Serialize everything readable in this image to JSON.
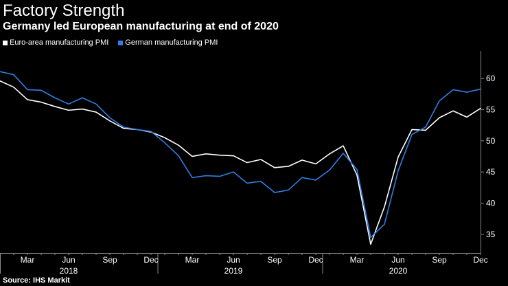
{
  "colors": {
    "background": "#000000",
    "euro": "#ffffff",
    "german": "#2f7fe6",
    "axis": "#888888"
  },
  "chart_data": {
    "type": "line",
    "title": "Factory Strength",
    "subtitle": "Germany led European manufacturing at end of 2020",
    "source": "Source: IHS Markit",
    "xlabel": "",
    "ylabel": "",
    "ylim": [
      32,
      62
    ],
    "yticks": [
      35,
      40,
      45,
      50,
      55,
      60
    ],
    "grid": false,
    "legend": "top-left",
    "x": [
      "2018-01",
      "2018-02",
      "2018-03",
      "2018-04",
      "2018-05",
      "2018-06",
      "2018-07",
      "2018-08",
      "2018-09",
      "2018-10",
      "2018-11",
      "2018-12",
      "2019-01",
      "2019-02",
      "2019-03",
      "2019-04",
      "2019-05",
      "2019-06",
      "2019-07",
      "2019-08",
      "2019-09",
      "2019-10",
      "2019-11",
      "2019-12",
      "2020-01",
      "2020-02",
      "2020-03",
      "2020-04",
      "2020-05",
      "2020-06",
      "2020-07",
      "2020-08",
      "2020-09",
      "2020-10",
      "2020-11",
      "2020-12"
    ],
    "xticks": [
      {
        "label": "Mar",
        "index": 2
      },
      {
        "label": "Jun",
        "index": 5
      },
      {
        "label": "Sep",
        "index": 8
      },
      {
        "label": "Dec",
        "index": 11
      },
      {
        "label": "Mar",
        "index": 14
      },
      {
        "label": "Jun",
        "index": 17
      },
      {
        "label": "Sep",
        "index": 20
      },
      {
        "label": "Dec",
        "index": 23
      },
      {
        "label": "Mar",
        "index": 26
      },
      {
        "label": "Jun",
        "index": 29
      },
      {
        "label": "Sep",
        "index": 32
      },
      {
        "label": "Dec",
        "index": 35
      }
    ],
    "years": [
      {
        "label": "2018",
        "index": 5
      },
      {
        "label": "2019",
        "index": 17
      },
      {
        "label": "2020",
        "index": 29
      }
    ],
    "year_dividers": [
      0,
      12,
      24
    ],
    "series": [
      {
        "name": "Euro-area manufacturing PMI",
        "color": "#ffffff",
        "values": [
          59.6,
          58.6,
          56.6,
          56.2,
          55.5,
          54.9,
          55.1,
          54.6,
          53.2,
          52.0,
          51.8,
          51.4,
          50.5,
          49.3,
          47.5,
          47.9,
          47.7,
          47.6,
          46.5,
          47.0,
          45.7,
          45.9,
          46.9,
          46.3,
          47.9,
          49.2,
          44.5,
          33.4,
          39.4,
          47.4,
          51.8,
          51.7,
          53.7,
          54.8,
          53.8,
          55.2
        ]
      },
      {
        "name": "German manufacturing PMI",
        "color": "#2f7fe6",
        "values": [
          61.1,
          60.6,
          58.2,
          58.1,
          56.9,
          55.9,
          56.9,
          55.9,
          53.7,
          52.2,
          51.8,
          51.5,
          49.7,
          47.6,
          44.1,
          44.4,
          44.3,
          45.0,
          43.2,
          43.5,
          41.7,
          42.1,
          44.1,
          43.7,
          45.3,
          48.0,
          45.4,
          34.5,
          36.6,
          45.2,
          51.0,
          52.2,
          56.4,
          58.2,
          57.8,
          58.3
        ]
      }
    ]
  }
}
